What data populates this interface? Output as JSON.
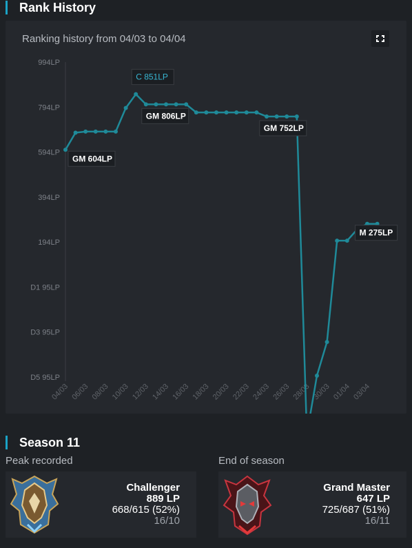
{
  "rank_history": {
    "title": "Rank History",
    "chart_title": "Ranking history from 04/03 to 04/04",
    "fullscreen_icon": "fullscreen-icon"
  },
  "chart_data": {
    "type": "line",
    "title": "Ranking history from 04/03 to 04/04",
    "y_ticks": [
      "994LP",
      "794LP",
      "594LP",
      "394LP",
      "194LP",
      "D1 95LP",
      "D3 95LP",
      "D5 95LP"
    ],
    "x_ticks": [
      "04/03",
      "06/03",
      "08/03",
      "10/03",
      "12/03",
      "14/03",
      "16/03",
      "18/03",
      "20/03",
      "22/03",
      "24/03",
      "26/03",
      "28/03",
      "30/03",
      "01/04",
      "03/04"
    ],
    "series": [
      {
        "color": "#1f8a99",
        "x": [
          0,
          1,
          2,
          3,
          4,
          5,
          6,
          7,
          8,
          9,
          10,
          11,
          12,
          13,
          14,
          15,
          16,
          17,
          18,
          19,
          20,
          21,
          22,
          23,
          24,
          25,
          26,
          27,
          28,
          29,
          30,
          31
        ],
        "y": [
          604,
          680,
          685,
          685,
          685,
          685,
          790,
          851,
          806,
          806,
          806,
          806,
          806,
          770,
          770,
          770,
          770,
          770,
          770,
          770,
          752,
          752,
          752,
          752,
          -660,
          -400,
          -250,
          200,
          200,
          250,
          275,
          275
        ]
      }
    ],
    "annotations": [
      {
        "label": "GM 604LP",
        "x": 0,
        "y": 604
      },
      {
        "label": "C 851LP",
        "x": 7,
        "y": 851
      },
      {
        "label": "GM 806LP",
        "x": 8,
        "y": 806
      },
      {
        "label": "GM 752LP",
        "x": 23,
        "y": 752
      },
      {
        "label": "M 275LP",
        "x": 31,
        "y": 275
      }
    ],
    "grid": false
  },
  "season": {
    "title": "Season 11",
    "peak": {
      "label": "Peak recorded",
      "tier": "Challenger",
      "lp": "889 LP",
      "winloss": "668/615 (52%)",
      "date": "16/10"
    },
    "end": {
      "label": "End of season",
      "tier": "Grand Master",
      "lp": "647 LP",
      "winloss": "725/687 (51%)",
      "date": "16/11"
    }
  }
}
